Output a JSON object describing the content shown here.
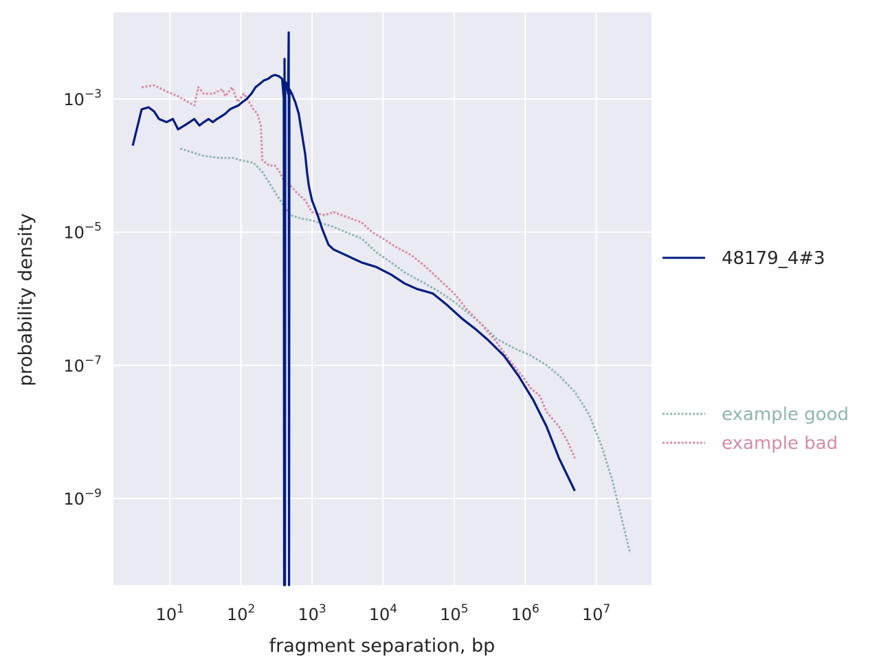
{
  "chart_data": {
    "type": "line",
    "title": "",
    "xlabel": "fragment separation, bp",
    "ylabel": "probability density",
    "xscale": "log",
    "yscale": "log",
    "xlim": [
      1.6,
      60000000
    ],
    "ylim": [
      5e-11,
      0.02
    ],
    "grid": true,
    "x_ticks": [
      {
        "base": "10",
        "exp": "1",
        "value": 10
      },
      {
        "base": "10",
        "exp": "2",
        "value": 100
      },
      {
        "base": "10",
        "exp": "3",
        "value": 1000
      },
      {
        "base": "10",
        "exp": "4",
        "value": 10000
      },
      {
        "base": "10",
        "exp": "5",
        "value": 100000
      },
      {
        "base": "10",
        "exp": "6",
        "value": 1000000
      },
      {
        "base": "10",
        "exp": "7",
        "value": 10000000
      }
    ],
    "y_ticks": [
      {
        "base": "10",
        "exp": "−3",
        "value": 0.001
      },
      {
        "base": "10",
        "exp": "−5",
        "value": 1e-05
      },
      {
        "base": "10",
        "exp": "−7",
        "value": 1e-07
      },
      {
        "base": "10",
        "exp": "−9",
        "value": 1e-09
      }
    ],
    "legend": {
      "main_placement": "right",
      "reference_placement": "right-lower"
    },
    "series": [
      {
        "name": "48179_4#3",
        "color": "#001c7f",
        "style": "solid",
        "legend_group": "main",
        "points": [
          [
            3,
            0.0002
          ],
          [
            4,
            0.0007
          ],
          [
            5,
            0.00075
          ],
          [
            6,
            0.00065
          ],
          [
            7,
            0.0005
          ],
          [
            9,
            0.00045
          ],
          [
            11,
            0.0005
          ],
          [
            13,
            0.00035
          ],
          [
            16,
            0.0004
          ],
          [
            19,
            0.00045
          ],
          [
            22,
            0.0005
          ],
          [
            26,
            0.0004
          ],
          [
            30,
            0.00045
          ],
          [
            35,
            0.0005
          ],
          [
            40,
            0.00045
          ],
          [
            46,
            0.0005
          ],
          [
            53,
            0.00055
          ],
          [
            60,
            0.0006
          ],
          [
            70,
            0.0007
          ],
          [
            80,
            0.00075
          ],
          [
            92,
            0.0008
          ],
          [
            105,
            0.0009
          ],
          [
            120,
            0.001
          ],
          [
            140,
            0.0012
          ],
          [
            160,
            0.0015
          ],
          [
            185,
            0.0017
          ],
          [
            210,
            0.0019
          ],
          [
            240,
            0.002
          ],
          [
            270,
            0.0022
          ],
          [
            300,
            0.0023
          ],
          [
            340,
            0.0022
          ],
          [
            380,
            0.002
          ],
          [
            400,
            0.001
          ],
          [
            405,
            1e-11
          ],
          [
            410,
            0.004
          ],
          [
            415,
            1e-11
          ],
          [
            420,
            0.0018
          ],
          [
            440,
            0.0017
          ],
          [
            460,
            0.0012
          ],
          [
            470,
            0.01
          ],
          [
            475,
            1e-11
          ],
          [
            480,
            0.0014
          ],
          [
            520,
            0.0012
          ],
          [
            580,
            0.0009
          ],
          [
            650,
            0.0006
          ],
          [
            720,
            0.0003
          ],
          [
            800,
            0.00015
          ],
          [
            850,
            8e-05
          ],
          [
            900,
            5e-05
          ],
          [
            1000,
            3e-05
          ],
          [
            1200,
            1.8e-05
          ],
          [
            1400,
            1.1e-05
          ],
          [
            1700,
            6.5e-06
          ],
          [
            2000,
            5.5e-06
          ],
          [
            3000,
            4.5e-06
          ],
          [
            5000,
            3.5e-06
          ],
          [
            8000,
            3e-06
          ],
          [
            13000,
            2.3e-06
          ],
          [
            20000,
            1.7e-06
          ],
          [
            30000,
            1.4e-06
          ],
          [
            50000,
            1.2e-06
          ],
          [
            80000,
            8e-07
          ],
          [
            130000,
            5e-07
          ],
          [
            200000,
            3.5e-07
          ],
          [
            300000,
            2.4e-07
          ],
          [
            500000,
            1.4e-07
          ],
          [
            800000,
            7e-08
          ],
          [
            1300000,
            3e-08
          ],
          [
            2000000,
            1.2e-08
          ],
          [
            3000000,
            4e-09
          ],
          [
            5000000,
            1.3e-09
          ]
        ]
      },
      {
        "name": "example good",
        "color": "#8fb5b0",
        "style": "dotted",
        "legend_group": "reference",
        "points": [
          [
            14,
            0.00018
          ],
          [
            20,
            0.00016
          ],
          [
            30,
            0.00014
          ],
          [
            50,
            0.00013
          ],
          [
            80,
            0.00013
          ],
          [
            100,
            0.00012
          ],
          [
            150,
            0.00011
          ],
          [
            200,
            8e-05
          ],
          [
            300,
            4e-05
          ],
          [
            400,
            2.5e-05
          ],
          [
            500,
            1.8e-05
          ],
          [
            700,
            1.6e-05
          ],
          [
            1000,
            1.5e-05
          ],
          [
            2000,
            1.2e-05
          ],
          [
            3000,
            1e-05
          ],
          [
            5000,
            8e-06
          ],
          [
            8000,
            5e-06
          ],
          [
            13000,
            3.5e-06
          ],
          [
            20000,
            2.5e-06
          ],
          [
            35000,
            1.8e-06
          ],
          [
            60000,
            1.3e-06
          ],
          [
            100000,
            9e-07
          ],
          [
            200000,
            5e-07
          ],
          [
            400000,
            2.5e-07
          ],
          [
            700000,
            1.8e-07
          ],
          [
            1200000,
            1.4e-07
          ],
          [
            2000000,
            1e-07
          ],
          [
            3000000,
            7e-08
          ],
          [
            5000000,
            4e-08
          ],
          [
            8000000,
            1.8e-08
          ],
          [
            12000000,
            6e-09
          ],
          [
            17000000,
            1.8e-09
          ],
          [
            30000000,
            1.5e-10
          ]
        ]
      },
      {
        "name": "example bad",
        "color": "#d58ba8",
        "style": "dotted",
        "legend_group": "reference",
        "points": [
          [
            4,
            0.0015
          ],
          [
            6,
            0.0016
          ],
          [
            9,
            0.0013
          ],
          [
            13,
            0.0011
          ],
          [
            18,
            0.0009
          ],
          [
            22,
            0.0008
          ],
          [
            25,
            0.0015
          ],
          [
            30,
            0.0012
          ],
          [
            40,
            0.0012
          ],
          [
            55,
            0.0014
          ],
          [
            60,
            0.0011
          ],
          [
            75,
            0.0015
          ],
          [
            90,
            0.0009
          ],
          [
            110,
            0.0012
          ],
          [
            130,
            0.0009
          ],
          [
            150,
            0.0007
          ],
          [
            170,
            0.0006
          ],
          [
            190,
            0.0004
          ],
          [
            200,
            0.00012
          ],
          [
            250,
            0.0001
          ],
          [
            300,
            0.0001
          ],
          [
            350,
            8e-05
          ],
          [
            400,
            6e-05
          ],
          [
            500,
            5e-05
          ],
          [
            600,
            4e-05
          ],
          [
            800,
            3e-05
          ],
          [
            1000,
            2e-05
          ],
          [
            1500,
            1.8e-05
          ],
          [
            2000,
            2e-05
          ],
          [
            3000,
            1.7e-05
          ],
          [
            5000,
            1.4e-05
          ],
          [
            7000,
            1e-05
          ],
          [
            10000,
            8e-06
          ],
          [
            15000,
            6e-06
          ],
          [
            25000,
            4.5e-06
          ],
          [
            40000,
            3e-06
          ],
          [
            60000,
            2e-06
          ],
          [
            100000,
            1.2e-06
          ],
          [
            150000,
            7e-07
          ],
          [
            250000,
            4e-07
          ],
          [
            400000,
            2.2e-07
          ],
          [
            600000,
            1.2e-07
          ],
          [
            900000,
            7e-08
          ],
          [
            1200000,
            4.5e-08
          ],
          [
            1600000,
            3.5e-08
          ],
          [
            2000000,
            2e-08
          ],
          [
            3000000,
            1.2e-08
          ],
          [
            4000000,
            7e-09
          ],
          [
            5000000,
            4e-09
          ]
        ]
      }
    ]
  }
}
